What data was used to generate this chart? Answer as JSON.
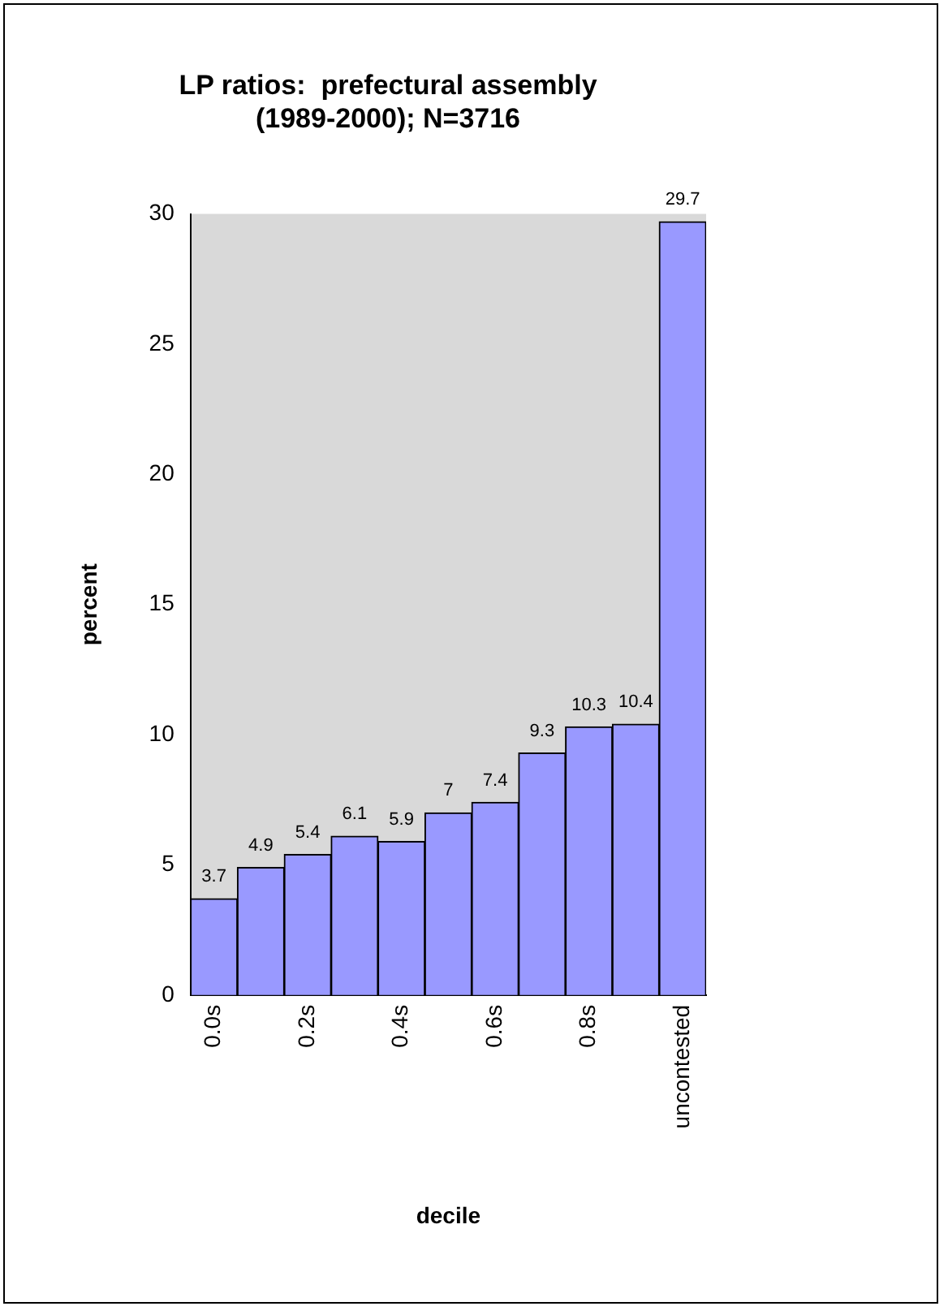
{
  "chart_data": {
    "type": "bar",
    "title": "LP ratios:  prefectural assembly\n(1989-2000); N=3716",
    "xlabel": "decile",
    "ylabel": "percent",
    "categories": [
      "0.0s",
      null,
      "0.2s",
      null,
      "0.4s",
      null,
      "0.6s",
      null,
      "0.8s",
      null,
      "uncontested"
    ],
    "values": [
      3.7,
      4.9,
      5.4,
      6.1,
      5.9,
      7,
      7.4,
      9.3,
      10.3,
      10.4,
      29.7
    ],
    "color": "#9999ff",
    "ylim": [
      0,
      30
    ],
    "yticks": [
      0,
      5,
      10,
      15,
      20,
      25,
      30
    ],
    "grid": false,
    "legend": false,
    "data_labels": true
  }
}
